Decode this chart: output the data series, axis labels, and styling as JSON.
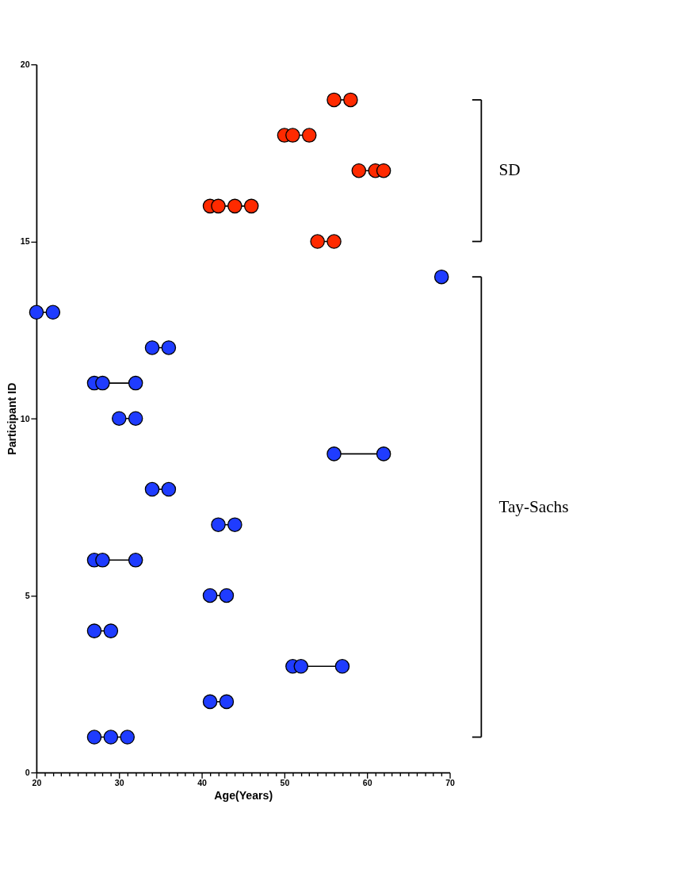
{
  "chart_data": {
    "type": "line",
    "xlabel": "Age(Years)",
    "ylabel": "Participant ID",
    "marker": "circle",
    "line_style": "solid",
    "grid": false,
    "legend": false,
    "xlim": [
      20,
      70
    ],
    "ylim": [
      0,
      20
    ],
    "xticks": [
      20,
      {
        "value": 21,
        "label": null
      },
      {
        "value": 22,
        "label": null
      },
      {
        "value": 23,
        "label": null
      },
      {
        "value": 24,
        "label": null
      },
      {
        "value": 25,
        "label": null
      },
      {
        "value": 26,
        "label": null
      },
      {
        "value": 27,
        "label": null
      },
      {
        "value": 28,
        "label": null
      },
      {
        "value": 29,
        "label": null
      },
      30,
      {
        "value": 31,
        "label": null
      },
      {
        "value": 32,
        "label": null
      },
      {
        "value": 33,
        "label": null
      },
      {
        "value": 34,
        "label": null
      },
      {
        "value": 35,
        "label": null
      },
      {
        "value": 36,
        "label": null
      },
      {
        "value": 37,
        "label": null
      },
      {
        "value": 38,
        "label": null
      },
      {
        "value": 39,
        "label": null
      },
      40,
      {
        "value": 41,
        "label": null
      },
      {
        "value": 42,
        "label": null
      },
      {
        "value": 43,
        "label": null
      },
      {
        "value": 44,
        "label": null
      },
      {
        "value": 45,
        "label": null
      },
      {
        "value": 46,
        "label": null
      },
      {
        "value": 47,
        "label": null
      },
      {
        "value": 48,
        "label": null
      },
      {
        "value": 49,
        "label": null
      },
      50,
      {
        "value": 51,
        "label": null
      },
      {
        "value": 52,
        "label": null
      },
      {
        "value": 53,
        "label": null
      },
      {
        "value": 54,
        "label": null
      },
      {
        "value": 55,
        "label": null
      },
      {
        "value": 56,
        "label": null
      },
      {
        "value": 57,
        "label": null
      },
      {
        "value": 58,
        "label": null
      },
      {
        "value": 59,
        "label": null
      },
      60,
      {
        "value": 61,
        "label": null
      },
      {
        "value": 62,
        "label": null
      },
      {
        "value": 63,
        "label": null
      },
      {
        "value": 64,
        "label": null
      },
      {
        "value": 65,
        "label": null
      },
      {
        "value": 66,
        "label": null
      },
      {
        "value": 67,
        "label": null
      },
      {
        "value": 68,
        "label": null
      },
      {
        "value": 69,
        "label": null
      },
      70
    ],
    "yticks": [
      0,
      5,
      10,
      15,
      20
    ],
    "series": [
      {
        "color": "#ff2a00",
        "x": [
          56,
          58
        ],
        "values": [
          19,
          19
        ]
      },
      {
        "color": "#ff2a00",
        "x": [
          50,
          51,
          53
        ],
        "values": [
          18,
          18,
          18
        ]
      },
      {
        "color": "#ff2a00",
        "x": [
          59,
          61,
          62
        ],
        "values": [
          17,
          17,
          17
        ]
      },
      {
        "color": "#ff2a00",
        "x": [
          41,
          42,
          44,
          46
        ],
        "values": [
          16,
          16,
          16,
          16
        ]
      },
      {
        "color": "#ff2a00",
        "x": [
          54,
          56
        ],
        "values": [
          15,
          15
        ]
      },
      {
        "color": "#1f3cff",
        "x": [
          69
        ],
        "values": [
          14
        ]
      },
      {
        "color": "#1f3cff",
        "x": [
          20,
          22
        ],
        "values": [
          13,
          13
        ]
      },
      {
        "color": "#1f3cff",
        "x": [
          34,
          36
        ],
        "values": [
          12,
          12
        ]
      },
      {
        "color": "#1f3cff",
        "x": [
          27,
          28,
          32
        ],
        "values": [
          11,
          11,
          11
        ]
      },
      {
        "color": "#1f3cff",
        "x": [
          30,
          32
        ],
        "values": [
          10,
          10
        ]
      },
      {
        "color": "#1f3cff",
        "x": [
          56,
          62
        ],
        "values": [
          9,
          9
        ]
      },
      {
        "color": "#1f3cff",
        "x": [
          34,
          36
        ],
        "values": [
          8,
          8
        ]
      },
      {
        "color": "#1f3cff",
        "x": [
          42,
          44
        ],
        "values": [
          7,
          7
        ]
      },
      {
        "color": "#1f3cff",
        "x": [
          27,
          28,
          32
        ],
        "values": [
          6,
          6,
          6
        ]
      },
      {
        "color": "#1f3cff",
        "x": [
          41,
          43
        ],
        "values": [
          5,
          5
        ]
      },
      {
        "color": "#1f3cff",
        "x": [
          27,
          29
        ],
        "values": [
          4,
          4
        ]
      },
      {
        "color": "#1f3cff",
        "x": [
          51,
          52,
          57
        ],
        "values": [
          3,
          3,
          3
        ]
      },
      {
        "color": "#1f3cff",
        "x": [
          41,
          43
        ],
        "values": [
          2,
          2
        ]
      },
      {
        "color": "#1f3cff",
        "x": [
          27,
          29,
          31
        ],
        "values": [
          1,
          1,
          1
        ]
      }
    ],
    "annotations": [
      "SD",
      "Tay-Sachs"
    ]
  }
}
